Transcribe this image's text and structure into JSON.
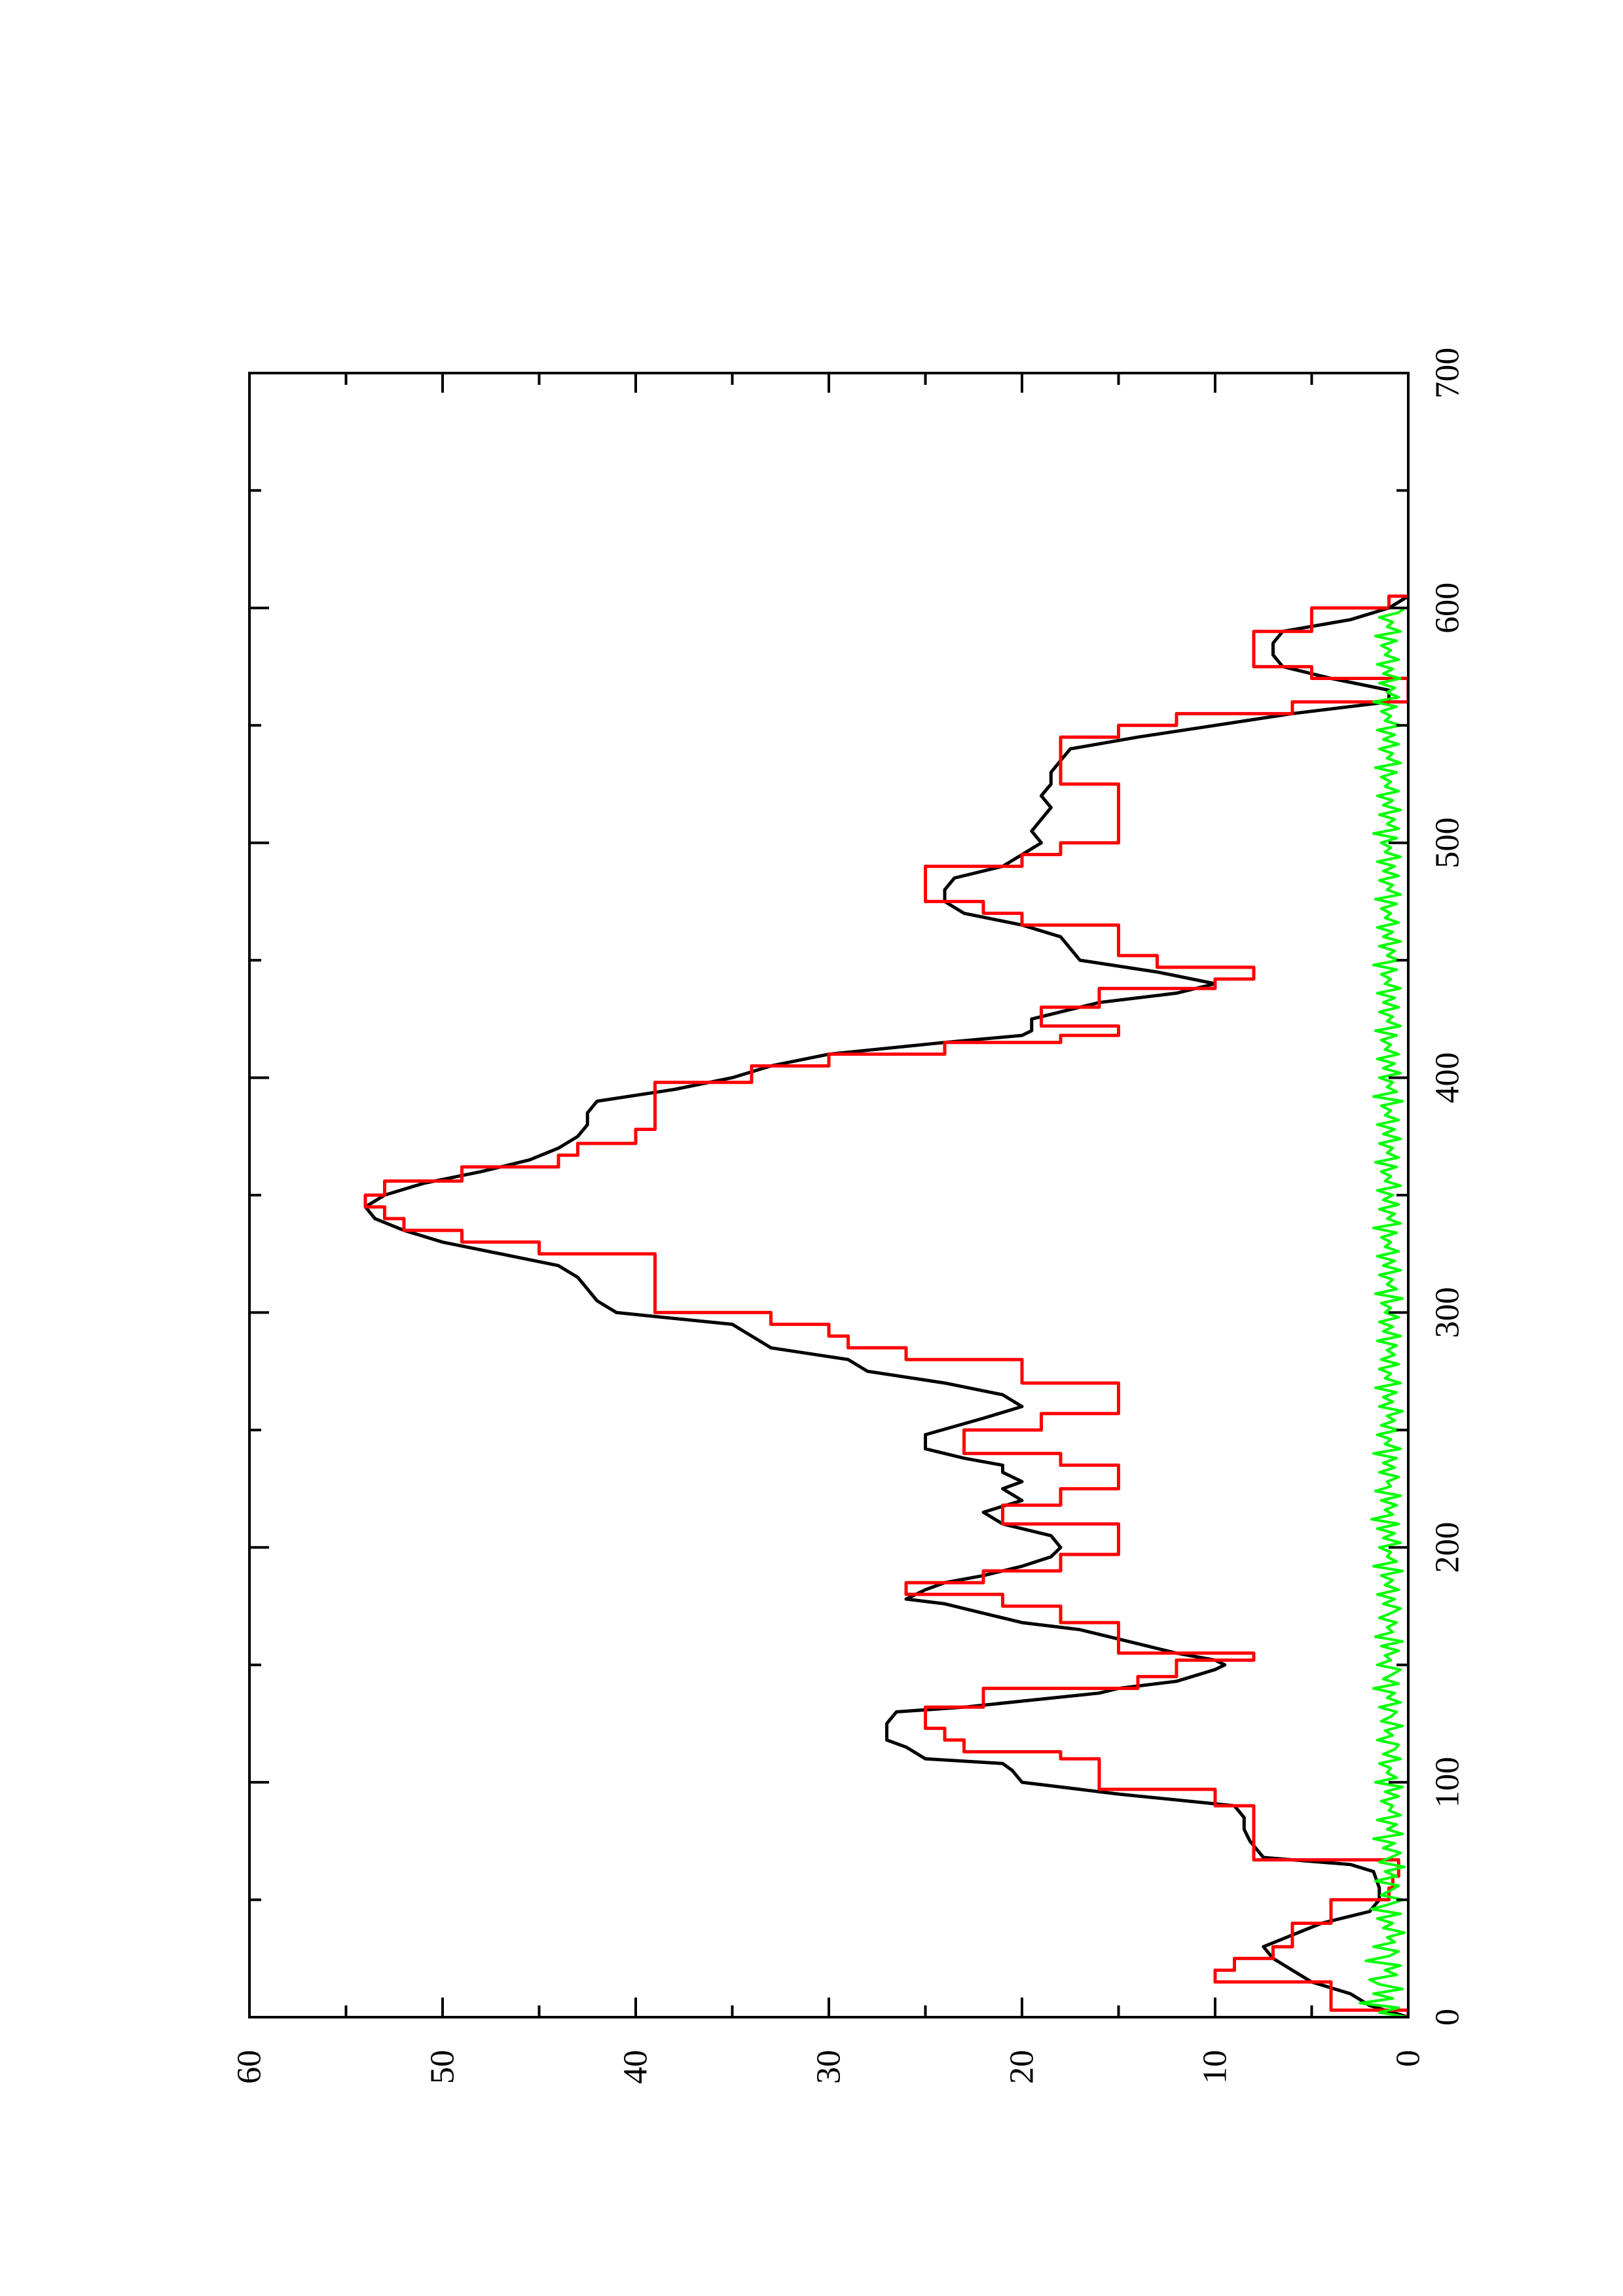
{
  "chart_data": {
    "type": "line",
    "title": "",
    "xlabel": "",
    "ylabel": "",
    "orientation": "rotated-90-ccw",
    "xlim": [
      0,
      700
    ],
    "ylim": [
      0,
      60
    ],
    "x_ticks": [
      {
        "value": 0,
        "label": "0"
      },
      {
        "value": 100,
        "label": "100"
      },
      {
        "value": 200,
        "label": "200"
      },
      {
        "value": 300,
        "label": "300"
      },
      {
        "value": 400,
        "label": "400"
      },
      {
        "value": 500,
        "label": "500"
      },
      {
        "value": 600,
        "label": "600"
      },
      {
        "value": 700,
        "label": "700"
      }
    ],
    "x_minor_ticks": [
      50,
      150,
      250,
      350,
      450,
      550,
      650
    ],
    "y_ticks": [
      {
        "value": 0,
        "label": "0"
      },
      {
        "value": 10,
        "label": "10"
      },
      {
        "value": 20,
        "label": "20"
      },
      {
        "value": 30,
        "label": "30"
      },
      {
        "value": 40,
        "label": "40"
      },
      {
        "value": 50,
        "label": "50"
      },
      {
        "value": 60,
        "label": "60"
      }
    ],
    "y_minor_ticks": [
      5,
      15,
      25,
      35,
      45,
      55
    ],
    "grid": false,
    "series": [
      {
        "color": "#000000",
        "style": "smooth",
        "points": [
          [
            0,
            0
          ],
          [
            5,
            2
          ],
          [
            10,
            3
          ],
          [
            15,
            5
          ],
          [
            20,
            6
          ],
          [
            25,
            7
          ],
          [
            30,
            7.5
          ],
          [
            35,
            6
          ],
          [
            40,
            4.5
          ],
          [
            45,
            2
          ],
          [
            50,
            1.5
          ],
          [
            55,
            1.5
          ],
          [
            62,
            1.8
          ],
          [
            65,
            3
          ],
          [
            68,
            7.5
          ],
          [
            75,
            8.2
          ],
          [
            80,
            8.5
          ],
          [
            85,
            8.5
          ],
          [
            90,
            9
          ],
          [
            95,
            15
          ],
          [
            100,
            20
          ],
          [
            105,
            20.5
          ],
          [
            108,
            21
          ],
          [
            110,
            25
          ],
          [
            115,
            26
          ],
          [
            118,
            27
          ],
          [
            125,
            27
          ],
          [
            130,
            26.5
          ],
          [
            132,
            23
          ],
          [
            138,
            16
          ],
          [
            140,
            15
          ],
          [
            143,
            12
          ],
          [
            148,
            10
          ],
          [
            150,
            9.5
          ],
          [
            152,
            10
          ],
          [
            155,
            12
          ],
          [
            160,
            14.5
          ],
          [
            165,
            17
          ],
          [
            168,
            20
          ],
          [
            172,
            22
          ],
          [
            176,
            24
          ],
          [
            178,
            26
          ],
          [
            182,
            25
          ],
          [
            185,
            24
          ],
          [
            188,
            22
          ],
          [
            192,
            20
          ],
          [
            196,
            18.5
          ],
          [
            200,
            18
          ],
          [
            205,
            18.5
          ],
          [
            210,
            21
          ],
          [
            215,
            22
          ],
          [
            220,
            20
          ],
          [
            225,
            21
          ],
          [
            228,
            20
          ],
          [
            232,
            21
          ],
          [
            235,
            21
          ],
          [
            238,
            23
          ],
          [
            242,
            25
          ],
          [
            248,
            25
          ],
          [
            255,
            22
          ],
          [
            260,
            20
          ],
          [
            265,
            21
          ],
          [
            270,
            24
          ],
          [
            275,
            28
          ],
          [
            280,
            29
          ],
          [
            285,
            33
          ],
          [
            290,
            34
          ],
          [
            295,
            35
          ],
          [
            300,
            41
          ],
          [
            305,
            42
          ],
          [
            310,
            42.5
          ],
          [
            315,
            43
          ],
          [
            320,
            44
          ],
          [
            325,
            47
          ],
          [
            330,
            50
          ],
          [
            335,
            52
          ],
          [
            340,
            53.5
          ],
          [
            345,
            54
          ],
          [
            350,
            53
          ],
          [
            355,
            51
          ],
          [
            360,
            48
          ],
          [
            365,
            45.5
          ],
          [
            370,
            44
          ],
          [
            375,
            43
          ],
          [
            380,
            42.5
          ],
          [
            385,
            42.5
          ],
          [
            390,
            42
          ],
          [
            395,
            38
          ],
          [
            400,
            35
          ],
          [
            405,
            33
          ],
          [
            410,
            30
          ],
          [
            415,
            24
          ],
          [
            418,
            20
          ],
          [
            420,
            19.5
          ],
          [
            425,
            19.5
          ],
          [
            428,
            18
          ],
          [
            432,
            16
          ],
          [
            436,
            12
          ],
          [
            440,
            10
          ],
          [
            445,
            13
          ],
          [
            450,
            17
          ],
          [
            455,
            17.5
          ],
          [
            460,
            18
          ],
          [
            465,
            20
          ],
          [
            470,
            23
          ],
          [
            475,
            24
          ],
          [
            480,
            24
          ],
          [
            485,
            23.5
          ],
          [
            490,
            21
          ],
          [
            495,
            20
          ],
          [
            500,
            19
          ],
          [
            505,
            19.5
          ],
          [
            510,
            19
          ],
          [
            515,
            18.5
          ],
          [
            520,
            19
          ],
          [
            525,
            18.5
          ],
          [
            530,
            18.5
          ],
          [
            535,
            18
          ],
          [
            540,
            17.5
          ],
          [
            545,
            14
          ],
          [
            550,
            10
          ],
          [
            555,
            6
          ],
          [
            560,
            1
          ],
          [
            565,
            1
          ],
          [
            570,
            4
          ],
          [
            575,
            6.5
          ],
          [
            580,
            7
          ],
          [
            585,
            7
          ],
          [
            590,
            6.5
          ],
          [
            595,
            3
          ],
          [
            600,
            1
          ],
          [
            605,
            0
          ]
        ]
      },
      {
        "color": "#ff0000",
        "style": "step",
        "points": [
          [
            0,
            0
          ],
          [
            3,
            4
          ],
          [
            10,
            4
          ],
          [
            15,
            10
          ],
          [
            20,
            9
          ],
          [
            25,
            7
          ],
          [
            30,
            6
          ],
          [
            35,
            6
          ],
          [
            40,
            4
          ],
          [
            45,
            4
          ],
          [
            50,
            1
          ],
          [
            55,
            0.8
          ],
          [
            60,
            0.5
          ],
          [
            67,
            8
          ],
          [
            85,
            8
          ],
          [
            90,
            10
          ],
          [
            97,
            16
          ],
          [
            110,
            18
          ],
          [
            113,
            23
          ],
          [
            118,
            24
          ],
          [
            123,
            25
          ],
          [
            127,
            25
          ],
          [
            132,
            22
          ],
          [
            140,
            14
          ],
          [
            145,
            12
          ],
          [
            152,
            8
          ],
          [
            155,
            15
          ],
          [
            160,
            15
          ],
          [
            168,
            18
          ],
          [
            175,
            21
          ],
          [
            180,
            26
          ],
          [
            185,
            22
          ],
          [
            190,
            18
          ],
          [
            197,
            15
          ],
          [
            205,
            15
          ],
          [
            210,
            21
          ],
          [
            213,
            21
          ],
          [
            218,
            18
          ],
          [
            225,
            15
          ],
          [
            230,
            15
          ],
          [
            235,
            18
          ],
          [
            240,
            23
          ],
          [
            245,
            23
          ],
          [
            250,
            19
          ],
          [
            257,
            15
          ],
          [
            262,
            15
          ],
          [
            270,
            20
          ],
          [
            280,
            26
          ],
          [
            285,
            29
          ],
          [
            290,
            30
          ],
          [
            295,
            33
          ],
          [
            300,
            39
          ],
          [
            320,
            39
          ],
          [
            325,
            45
          ],
          [
            330,
            49
          ],
          [
            335,
            52
          ],
          [
            340,
            53
          ],
          [
            345,
            54
          ],
          [
            350,
            53
          ],
          [
            356,
            49
          ],
          [
            362,
            44
          ],
          [
            367,
            43
          ],
          [
            372,
            40
          ],
          [
            378,
            39
          ],
          [
            390,
            39
          ],
          [
            398,
            34
          ],
          [
            405,
            30
          ],
          [
            410,
            24
          ],
          [
            415,
            18
          ],
          [
            418,
            15
          ],
          [
            422,
            19
          ],
          [
            430,
            16
          ],
          [
            438,
            10
          ],
          [
            442,
            8
          ],
          [
            447,
            13
          ],
          [
            452,
            15
          ],
          [
            460,
            15
          ],
          [
            465,
            20
          ],
          [
            470,
            22
          ],
          [
            475,
            25
          ],
          [
            485,
            25
          ],
          [
            490,
            20
          ],
          [
            495,
            18
          ],
          [
            500,
            15
          ],
          [
            520,
            15
          ],
          [
            525,
            18
          ],
          [
            530,
            18
          ],
          [
            535,
            18
          ],
          [
            545,
            15
          ],
          [
            550,
            12
          ],
          [
            555,
            6
          ],
          [
            560,
            0
          ],
          [
            565,
            0
          ],
          [
            570,
            5
          ],
          [
            575,
            8
          ],
          [
            585,
            8
          ],
          [
            590,
            5
          ],
          [
            600,
            1
          ],
          [
            605,
            0
          ]
        ]
      },
      {
        "color": "#00ff00",
        "style": "noise",
        "x_start": 0,
        "x_end": 608,
        "x_step": 2,
        "values": [
          0,
          1.5,
          0.5,
          2.5,
          0.8,
          1.8,
          0.3,
          1.5,
          2.0,
          0.6,
          1.2,
          0.4,
          2.2,
          1.0,
          0.5,
          1.8,
          0.7,
          1.1,
          0.2,
          1.3,
          0.8,
          1.6,
          0.4,
          1.9,
          1.0,
          0.3,
          1.4,
          0.9,
          0.5,
          1.7,
          0.6,
          1.2,
          0.2,
          1.5,
          0.9,
          0.4,
          1.3,
          0.7,
          1.8,
          0.3,
          1.1,
          0.6,
          1.6,
          0.4,
          1.0,
          0.8,
          1.4,
          0.5,
          1.2,
          0.3,
          1.7,
          0.6,
          1.1,
          0.9,
          1.5,
          0.4,
          1.3,
          0.7,
          0.5,
          1.6,
          0.8,
          1.2,
          0.3,
          1.4,
          0.9,
          0.6,
          1.5,
          0.4,
          1.1,
          0.7,
          1.8,
          0.5,
          1.3,
          0.8,
          0.4,
          1.6,
          0.9,
          1.2,
          0.5,
          1.4,
          0.3,
          1.7,
          0.8,
          1.1,
          0.6,
          1.5,
          0.9,
          0.4,
          1.3,
          0.7,
          1.6,
          0.5,
          1.2,
          0.8,
          1.4,
          0.3,
          1.8,
          0.6,
          1.1,
          0.9,
          1.5,
          0.4,
          1.3,
          0.7,
          1.6,
          0.5,
          1.9,
          0.8,
          1.2,
          0.6,
          1.4,
          0.4,
          1.7,
          0.9,
          1.1,
          0.5,
          1.5,
          0.7,
          1.3,
          0.6,
          1.8,
          0.4,
          1.2,
          0.9,
          1.6,
          0.5,
          1.4,
          0.7,
          1.1,
          0.3,
          1.5,
          0.8,
          1.3,
          0.6,
          1.7,
          0.4,
          1.2,
          0.9,
          1.5,
          0.5,
          1.4,
          0.7,
          1.1,
          0.6,
          1.6,
          0.4,
          1.3,
          0.8,
          1.5,
          0.5,
          1.2,
          0.9,
          1.4,
          0.3,
          1.7,
          0.6,
          1.1,
          0.8,
          1.5,
          0.4,
          1.3,
          0.7,
          1.6,
          0.5,
          1.2,
          0.9,
          1.4,
          0.6,
          1.8,
          0.4,
          1.1,
          0.7,
          1.5,
          0.5,
          1.3,
          0.8,
          1.6,
          0.4,
          1.2,
          0.9,
          1.4,
          0.6,
          1.7,
          0.5,
          1.1,
          0.8,
          1.5,
          0.4,
          1.3,
          0.7,
          1.6,
          0.5,
          1.2,
          0.9,
          1.4,
          0.3,
          1.8,
          0.6,
          1.1,
          0.8,
          1.5,
          0.4,
          1.3,
          0.7,
          1.6,
          0.5,
          1.2,
          0.9,
          1.4,
          0.6,
          1.7,
          0.4,
          1.1,
          0.8,
          1.5,
          0.5,
          1.3,
          0.7,
          1.6,
          0.4,
          1.2,
          0.9,
          1.4,
          0.6,
          1.8,
          0.5,
          1.1,
          0.7,
          1.5,
          0.4,
          1.3,
          0.8,
          1.6,
          0.5,
          1.2,
          0.9,
          1.4,
          0.6,
          1.7,
          0.4,
          1.1,
          0.8,
          1.5,
          0.5,
          1.3,
          0.7,
          1.6,
          0.4,
          1.2,
          0.9,
          1.4,
          0.6,
          1.8,
          0.5,
          1.1,
          0.7,
          1.5,
          0.4,
          1.3,
          0.8,
          1.6,
          0.5,
          1.2,
          0.9,
          1.4,
          0.6,
          1.7,
          0.4,
          1.1,
          0.8,
          1.5,
          0.5,
          1.3,
          0.7,
          1.6,
          0.4,
          1.2,
          0.9,
          1.4,
          0.6,
          1.8,
          0.5,
          1.1,
          0.7,
          1.5,
          0.4,
          1.3,
          0.8,
          1.6,
          0.5,
          1.2,
          0.9,
          1.4,
          0.6,
          1.7,
          0.4,
          1.1,
          0.8,
          1.5,
          0.5,
          0.2
        ]
      }
    ]
  }
}
